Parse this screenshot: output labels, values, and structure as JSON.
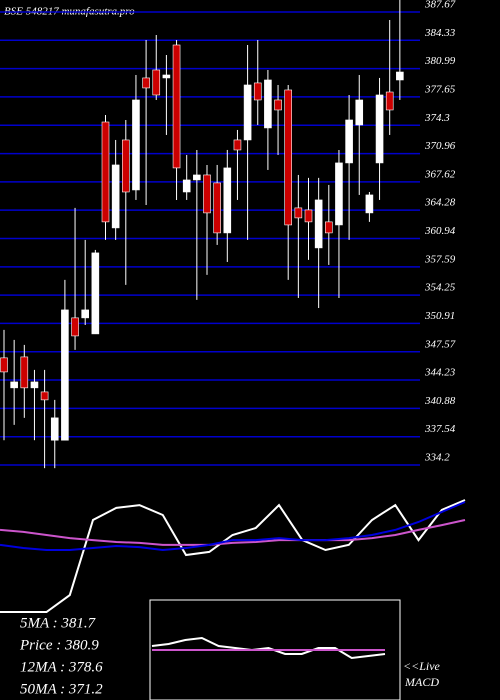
{
  "chart_data": [
    {
      "type": "candlestick",
      "title": "BSE 548217 munafasutra.pro",
      "open": [
        346.02,
        342.48,
        346.13,
        342.48,
        342.0,
        336.3,
        336.3,
        350.74,
        350.74,
        348.85,
        373.86,
        361.36,
        371.74,
        365.84,
        379.06,
        380.0,
        379.06,
        382.95,
        365.6,
        367.02,
        367.61,
        366.67,
        360.77,
        371.74,
        371.74,
        378.47,
        373.16,
        376.46,
        377.64,
        363.72,
        363.48,
        359.0,
        362.07,
        361.71,
        369.03,
        373.51,
        363.13,
        369.03,
        377.4,
        378.82
      ],
      "high": [
        349.32,
        348.14,
        347.55,
        344.6,
        344.6,
        341.06,
        355.22,
        363.72,
        359.94,
        358.76,
        374.69,
        371.74,
        374.1,
        379.41,
        383.54,
        384.13,
        381.77,
        383.54,
        369.97,
        370.56,
        368.79,
        368.79,
        370.56,
        372.92,
        382.95,
        383.54,
        380.0,
        378.23,
        378.23,
        367.61,
        367.26,
        367.26,
        366.43,
        370.56,
        377.05,
        379.41,
        365.6,
        379.06,
        385.9,
        388.26
      ],
      "low": [
        336.3,
        338.11,
        338.94,
        336.3,
        333.0,
        333.0,
        336.3,
        346.96,
        349.9,
        348.85,
        359.94,
        359.94,
        354.63,
        364.66,
        364.07,
        376.46,
        372.33,
        364.66,
        364.66,
        352.86,
        355.81,
        359.35,
        357.34,
        364.66,
        359.94,
        373.51,
        368.2,
        369.97,
        355.22,
        353.09,
        357.58,
        351.91,
        356.99,
        353.09,
        359.94,
        365.25,
        362.07,
        364.66,
        372.33,
        376.46
      ],
      "close": [
        344.36,
        343.18,
        342.48,
        343.18,
        341.06,
        338.94,
        351.68,
        348.61,
        351.68,
        358.41,
        362.07,
        368.79,
        365.6,
        376.46,
        377.88,
        377.05,
        379.41,
        368.44,
        367.02,
        367.61,
        363.13,
        360.77,
        368.44,
        370.56,
        378.23,
        376.46,
        378.82,
        375.28,
        361.71,
        362.54,
        362.07,
        364.66,
        360.77,
        369.03,
        374.1,
        376.46,
        365.25,
        377.05,
        375.28,
        379.76
      ],
      "up_color": "#ffffff",
      "down_color": "#cc0000",
      "grid_color": "#0000cc",
      "ylim": [
        334.2,
        387.67
      ],
      "yticks": [
        387.67,
        384.33,
        380.99,
        377.65,
        374.3,
        370.96,
        367.62,
        364.28,
        360.94,
        357.59,
        354.25,
        350.91,
        347.57,
        344.23,
        340.88,
        337.54,
        334.2
      ],
      "grid": true
    },
    {
      "type": "line",
      "ylim": [
        0,
        100
      ],
      "series": [
        {
          "color": "#ffffff",
          "values": [
            40,
            40,
            40,
            47.7,
            81.8,
            87.3,
            88.6,
            84.1,
            65.9,
            67.3,
            75,
            78.2,
            88.6,
            72.7,
            68.2,
            70.5,
            81.8,
            88.6,
            72.7,
            86.4,
            90.9
          ]
        },
        {
          "color": "#cc55cc",
          "values": [
            77.3,
            76.4,
            75,
            73.6,
            72.7,
            71.8,
            71.4,
            70.5,
            70.5,
            70.5,
            71.4,
            71.8,
            72.7,
            72.7,
            72.7,
            72.7,
            73.6,
            75,
            77.3,
            79.5,
            81.8
          ]
        },
        {
          "color": "#0000dd",
          "values": [
            70.5,
            69.1,
            68.2,
            68.2,
            69.1,
            70,
            69.5,
            68.2,
            69.1,
            70.5,
            72.7,
            72.7,
            73.6,
            72.7,
            72.7,
            73.6,
            75,
            77.3,
            80.9,
            85.5,
            90
          ]
        }
      ],
      "stats": [
        "5MA : 381.7",
        "Price : 380.9",
        "12MA : 378.6",
        "50MA : 371.2"
      ],
      "live": "<<Live",
      "indicator": "MACD"
    },
    {
      "type": "line",
      "ylim": [
        -1,
        1
      ],
      "series": [
        {
          "color": "#ffffff",
          "values": [
            0.1,
            0.15,
            0.25,
            0.3,
            0.1,
            0.05,
            0.0,
            0.05,
            -0.1,
            -0.1,
            0.05,
            0.05,
            -0.2,
            -0.15,
            -0.1
          ]
        },
        {
          "color": "#cc55cc",
          "values": [
            0,
            0,
            0,
            0,
            0,
            0,
            0,
            0,
            0,
            0,
            0,
            0,
            0,
            0,
            0
          ]
        }
      ]
    }
  ]
}
